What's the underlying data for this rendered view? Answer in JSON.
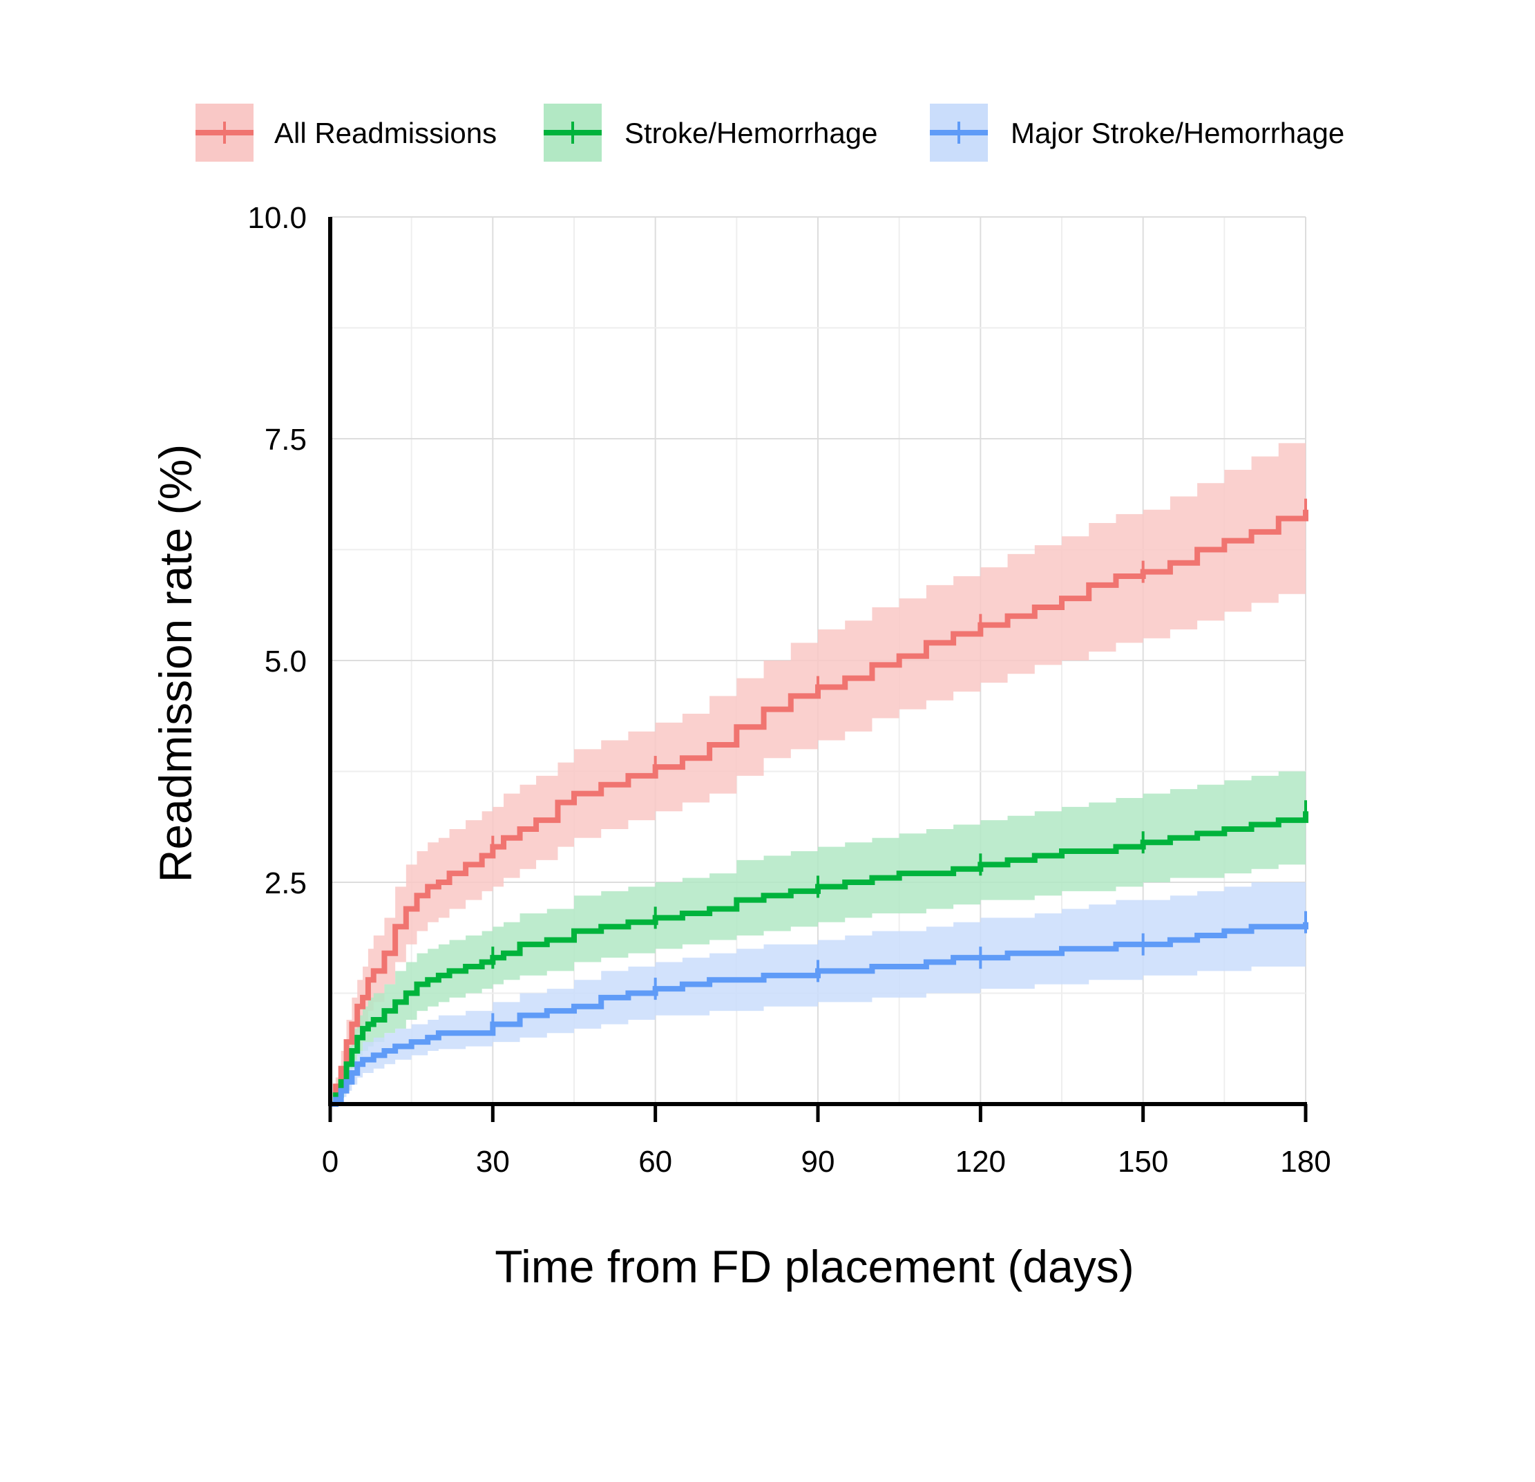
{
  "chart_data": {
    "type": "line",
    "subtype": "cumulative-incidence-step",
    "title": "",
    "xlabel": "Time from FD placement (days)",
    "ylabel": "Readmission rate (%)",
    "xlim": [
      0,
      180
    ],
    "ylim": [
      0,
      10
    ],
    "x_ticks": [
      0,
      30,
      60,
      90,
      120,
      150,
      180
    ],
    "x_tick_labels": [
      "0",
      "30",
      "60",
      "90",
      "120",
      "150",
      "180"
    ],
    "y_ticks": [
      2.5,
      5.0,
      7.5,
      10.0
    ],
    "y_tick_labels": [
      "2.5",
      "5.0",
      "7.5",
      "10.0"
    ],
    "grid": true,
    "legend_position": "top",
    "series": [
      {
        "name": "All Readmissions",
        "color": "#F07470",
        "band_color": "#F9C8C6",
        "x": [
          0,
          1,
          2,
          3,
          4,
          5,
          6,
          7,
          8,
          10,
          12,
          14,
          16,
          18,
          20,
          22,
          25,
          28,
          30,
          32,
          35,
          38,
          42,
          45,
          50,
          55,
          60,
          65,
          70,
          75,
          80,
          85,
          90,
          95,
          100,
          105,
          110,
          115,
          120,
          125,
          130,
          135,
          140,
          145,
          150,
          155,
          160,
          165,
          170,
          175,
          180
        ],
        "y": [
          0,
          0.2,
          0.4,
          0.7,
          0.9,
          1.1,
          1.2,
          1.4,
          1.5,
          1.7,
          2.0,
          2.2,
          2.35,
          2.45,
          2.5,
          2.6,
          2.7,
          2.8,
          2.9,
          3.0,
          3.1,
          3.2,
          3.4,
          3.5,
          3.6,
          3.7,
          3.8,
          3.9,
          4.05,
          4.25,
          4.45,
          4.6,
          4.7,
          4.8,
          4.95,
          5.05,
          5.2,
          5.3,
          5.4,
          5.5,
          5.6,
          5.7,
          5.85,
          5.95,
          6.0,
          6.1,
          6.25,
          6.35,
          6.45,
          6.6,
          6.7
        ],
        "lower": [
          0,
          0.1,
          0.25,
          0.5,
          0.65,
          0.8,
          0.9,
          1.05,
          1.15,
          1.35,
          1.6,
          1.8,
          1.95,
          2.05,
          2.1,
          2.2,
          2.3,
          2.4,
          2.45,
          2.55,
          2.65,
          2.75,
          2.9,
          3.0,
          3.1,
          3.2,
          3.3,
          3.4,
          3.5,
          3.7,
          3.9,
          4.0,
          4.1,
          4.2,
          4.35,
          4.45,
          4.55,
          4.65,
          4.75,
          4.85,
          4.95,
          5.0,
          5.1,
          5.2,
          5.25,
          5.35,
          5.45,
          5.55,
          5.65,
          5.75,
          5.85
        ],
        "upper": [
          0,
          0.3,
          0.6,
          0.95,
          1.2,
          1.4,
          1.55,
          1.75,
          1.9,
          2.1,
          2.45,
          2.7,
          2.85,
          2.95,
          3.0,
          3.1,
          3.2,
          3.3,
          3.35,
          3.5,
          3.6,
          3.7,
          3.85,
          4.0,
          4.1,
          4.2,
          4.3,
          4.4,
          4.6,
          4.8,
          5.0,
          5.2,
          5.35,
          5.45,
          5.6,
          5.7,
          5.85,
          5.95,
          6.05,
          6.2,
          6.3,
          6.4,
          6.55,
          6.65,
          6.7,
          6.85,
          7.0,
          7.15,
          7.3,
          7.45,
          7.55
        ]
      },
      {
        "name": "Stroke/Hemorrhage",
        "color": "#00B33C",
        "band_color": "#B2E8C4",
        "x": [
          0,
          1,
          2,
          3,
          4,
          5,
          6,
          7,
          8,
          10,
          12,
          14,
          16,
          18,
          20,
          22,
          25,
          28,
          30,
          32,
          35,
          40,
          45,
          50,
          55,
          60,
          65,
          70,
          75,
          80,
          85,
          90,
          95,
          100,
          105,
          110,
          115,
          120,
          125,
          130,
          135,
          140,
          145,
          150,
          155,
          160,
          165,
          170,
          175,
          180
        ],
        "y": [
          0,
          0.1,
          0.25,
          0.45,
          0.6,
          0.75,
          0.85,
          0.9,
          0.95,
          1.05,
          1.15,
          1.25,
          1.35,
          1.4,
          1.45,
          1.5,
          1.55,
          1.6,
          1.65,
          1.7,
          1.8,
          1.85,
          1.95,
          2.0,
          2.05,
          2.1,
          2.15,
          2.2,
          2.3,
          2.35,
          2.4,
          2.45,
          2.5,
          2.55,
          2.6,
          2.6,
          2.65,
          2.7,
          2.75,
          2.8,
          2.85,
          2.85,
          2.9,
          2.95,
          3.0,
          3.05,
          3.1,
          3.15,
          3.2,
          3.3
        ],
        "lower": [
          0,
          0.05,
          0.15,
          0.3,
          0.4,
          0.55,
          0.6,
          0.65,
          0.7,
          0.8,
          0.85,
          0.95,
          1.05,
          1.1,
          1.15,
          1.2,
          1.25,
          1.3,
          1.35,
          1.4,
          1.45,
          1.5,
          1.6,
          1.65,
          1.7,
          1.75,
          1.8,
          1.85,
          1.9,
          1.95,
          2.0,
          2.05,
          2.1,
          2.15,
          2.15,
          2.2,
          2.25,
          2.3,
          2.3,
          2.35,
          2.4,
          2.4,
          2.45,
          2.5,
          2.55,
          2.55,
          2.6,
          2.65,
          2.7,
          2.75
        ],
        "upper": [
          0,
          0.2,
          0.4,
          0.65,
          0.85,
          1.0,
          1.1,
          1.2,
          1.25,
          1.35,
          1.5,
          1.6,
          1.7,
          1.75,
          1.8,
          1.85,
          1.9,
          1.95,
          2.0,
          2.05,
          2.15,
          2.2,
          2.35,
          2.4,
          2.45,
          2.5,
          2.55,
          2.6,
          2.75,
          2.8,
          2.85,
          2.9,
          2.95,
          3.0,
          3.05,
          3.1,
          3.15,
          3.2,
          3.25,
          3.3,
          3.35,
          3.4,
          3.45,
          3.5,
          3.55,
          3.6,
          3.65,
          3.7,
          3.75,
          3.85
        ]
      },
      {
        "name": "Major Stroke/Hemorrhage",
        "color": "#5F9BF7",
        "band_color": "#CADDFB",
        "x": [
          0,
          1,
          2,
          3,
          4,
          5,
          6,
          8,
          10,
          12,
          15,
          18,
          20,
          25,
          30,
          35,
          40,
          45,
          50,
          55,
          60,
          65,
          70,
          75,
          80,
          85,
          90,
          95,
          100,
          105,
          110,
          115,
          120,
          125,
          130,
          135,
          140,
          145,
          150,
          155,
          160,
          165,
          170,
          175,
          180
        ],
        "y": [
          0,
          0.05,
          0.15,
          0.25,
          0.35,
          0.45,
          0.5,
          0.55,
          0.6,
          0.65,
          0.7,
          0.75,
          0.8,
          0.8,
          0.9,
          1.0,
          1.05,
          1.1,
          1.2,
          1.25,
          1.3,
          1.35,
          1.4,
          1.4,
          1.45,
          1.45,
          1.5,
          1.5,
          1.55,
          1.55,
          1.6,
          1.65,
          1.65,
          1.7,
          1.7,
          1.75,
          1.75,
          1.8,
          1.8,
          1.85,
          1.9,
          1.95,
          2.0,
          2.0,
          2.05
        ],
        "lower": [
          0,
          0.02,
          0.08,
          0.15,
          0.22,
          0.3,
          0.35,
          0.4,
          0.45,
          0.5,
          0.55,
          0.6,
          0.62,
          0.65,
          0.7,
          0.75,
          0.8,
          0.85,
          0.9,
          0.95,
          1.0,
          1.0,
          1.05,
          1.05,
          1.1,
          1.1,
          1.15,
          1.15,
          1.2,
          1.2,
          1.25,
          1.25,
          1.3,
          1.3,
          1.35,
          1.35,
          1.4,
          1.4,
          1.45,
          1.45,
          1.5,
          1.5,
          1.55,
          1.55,
          1.6
        ],
        "upper": [
          0,
          0.1,
          0.25,
          0.4,
          0.5,
          0.6,
          0.7,
          0.75,
          0.8,
          0.85,
          0.9,
          0.95,
          1.0,
          1.05,
          1.15,
          1.25,
          1.3,
          1.4,
          1.5,
          1.55,
          1.6,
          1.65,
          1.7,
          1.75,
          1.8,
          1.8,
          1.85,
          1.9,
          1.95,
          1.95,
          2.0,
          2.05,
          2.1,
          2.1,
          2.15,
          2.2,
          2.25,
          2.3,
          2.3,
          2.35,
          2.4,
          2.45,
          2.5,
          2.5,
          2.55
        ]
      }
    ],
    "censor_marks_x": [
      30,
      60,
      90,
      120,
      150,
      180
    ]
  }
}
